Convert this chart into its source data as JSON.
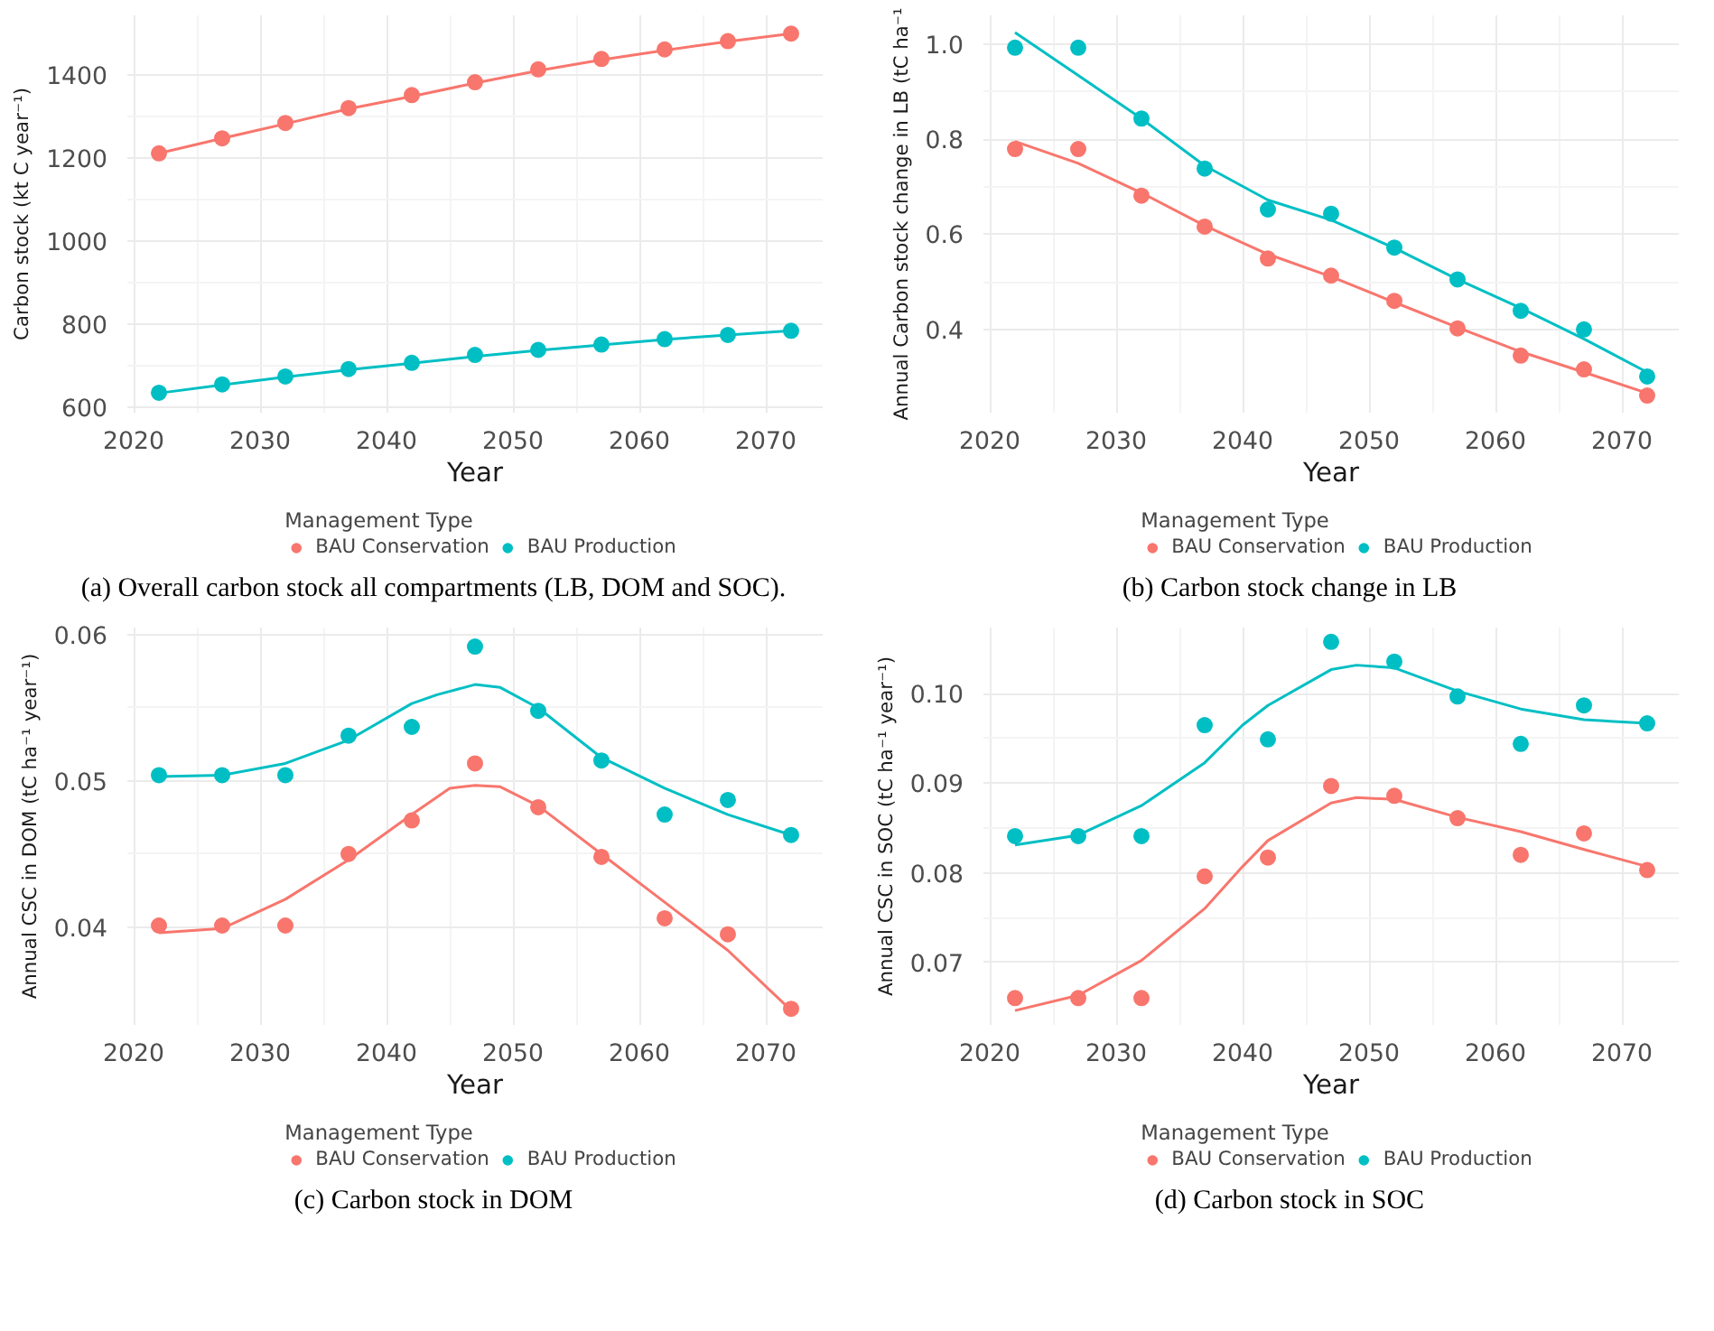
{
  "chart_data": [
    {
      "type": "scatter",
      "xlabel": "Year",
      "ylabel": "Carbon stock (kt C year⁻¹)",
      "legend_title": "Management Type",
      "legend": "bottom",
      "grid": true,
      "marker": "circle",
      "line_style": "solid",
      "xlim": [
        2019.5,
        2074.5
      ],
      "xticks": [
        2020,
        2030,
        2040,
        2050,
        2060,
        2070
      ],
      "ylim": [
        587,
        1543
      ],
      "yticks": [
        600,
        800,
        1000,
        1200,
        1400
      ],
      "annotations": [
        "(a) Overall carbon stock all compartments (LB, DOM and SOC)."
      ],
      "x": [
        2022,
        2027,
        2032,
        2037,
        2042,
        2047,
        2052,
        2057,
        2062,
        2067,
        2072
      ],
      "series": [
        {
          "name": "BAU Conservation",
          "color": "#f8766d",
          "values": [
            1211,
            1247,
            1284,
            1320,
            1351,
            1382,
            1413,
            1438,
            1461,
            1481,
            1499
          ]
        },
        {
          "name": "BAU Production",
          "color": "#00bfc4",
          "values": [
            635,
            655,
            674,
            692,
            707,
            726,
            738,
            751,
            764,
            774,
            784
          ]
        },
        {
          "type": "line",
          "marker": "none",
          "color": "#f8766d",
          "x": [
            2022,
            2027,
            2032,
            2037,
            2042,
            2047,
            2052,
            2057,
            2062,
            2067,
            2072
          ],
          "values": [
            1211,
            1247,
            1282,
            1318,
            1348,
            1380,
            1410,
            1436,
            1459,
            1480,
            1499
          ]
        },
        {
          "type": "line",
          "marker": "none",
          "color": "#00bfc4",
          "x": [
            2022,
            2027,
            2032,
            2037,
            2042,
            2047,
            2052,
            2057,
            2062,
            2067,
            2072
          ],
          "values": [
            634,
            654,
            673,
            690,
            706,
            722,
            737,
            750,
            763,
            774,
            784
          ]
        }
      ]
    },
    {
      "type": "scatter",
      "xlabel": "Year",
      "ylabel": "Annual Carbon stock change in LB (tC ha⁻¹",
      "legend_title": "Management Type",
      "legend": "bottom",
      "grid": true,
      "marker": "circle",
      "line_style": "solid",
      "xlim": [
        2019.5,
        2074.5
      ],
      "xticks": [
        2020,
        2030,
        2040,
        2050,
        2060,
        2070
      ],
      "ylim": [
        0.225,
        1.06
      ],
      "yticks": [
        0.4,
        0.6,
        0.8,
        {
          "value": 1.0,
          "label": "1.0"
        }
      ],
      "annotations": [
        "(b) Carbon stock change in LB"
      ],
      "x": [
        2022,
        2027,
        2032,
        2037,
        2042,
        2047,
        2052,
        2057,
        2062,
        2067,
        2072
      ],
      "series": [
        {
          "name": "BAU Conservation",
          "color": "#f8766d",
          "values": [
            0.779,
            0.779,
            0.681,
            0.616,
            0.549,
            0.513,
            0.46,
            0.402,
            0.345,
            0.316,
            0.261
          ]
        },
        {
          "name": "BAU Production",
          "color": "#00bfc4",
          "values": [
            0.992,
            0.992,
            0.843,
            0.738,
            0.652,
            0.643,
            0.572,
            0.505,
            0.439,
            0.4,
            0.301
          ]
        },
        {
          "type": "line",
          "marker": "none",
          "color": "#f8766d",
          "x": [
            2022,
            2027,
            2032,
            2037,
            2042,
            2047,
            2052,
            2057,
            2062,
            2067,
            2072
          ],
          "values": [
            0.795,
            0.749,
            0.687,
            0.618,
            0.558,
            0.511,
            0.457,
            0.404,
            0.353,
            0.31,
            0.266
          ]
        },
        {
          "type": "line",
          "marker": "none",
          "color": "#00bfc4",
          "x": [
            2022,
            2027,
            2032,
            2037,
            2042,
            2047,
            2052,
            2057,
            2062,
            2067,
            2072
          ],
          "values": [
            1.024,
            0.934,
            0.843,
            0.744,
            0.672,
            0.63,
            0.571,
            0.505,
            0.445,
            0.38,
            0.31
          ]
        }
      ]
    },
    {
      "type": "scatter",
      "xlabel": "Year",
      "ylabel": "Annual CSC in DOM (tC ha⁻¹ year⁻¹)",
      "legend_title": "Management Type",
      "legend": "bottom",
      "grid": true,
      "marker": "circle",
      "line_style": "solid",
      "xlim": [
        2019.5,
        2074.5
      ],
      "xticks": [
        2020,
        2030,
        2040,
        2050,
        2060,
        2070
      ],
      "ylim": [
        0.0333,
        0.0605
      ],
      "yticks": [
        0.04,
        0.05,
        0.06
      ],
      "annotations": [
        "(c) Carbon stock in DOM"
      ],
      "x": [
        2022,
        2027,
        2032,
        2037,
        2042,
        2047,
        2052,
        2057,
        2062,
        2067,
        2072
      ],
      "series": [
        {
          "name": "BAU Conservation",
          "color": "#f8766d",
          "values": [
            0.0401,
            0.0401,
            0.0401,
            0.045,
            0.0473,
            0.0512,
            0.0482,
            0.0448,
            0.0406,
            0.0395,
            0.0344
          ]
        },
        {
          "name": "BAU Production",
          "color": "#00bfc4",
          "values": [
            0.0504,
            0.0504,
            0.0504,
            0.0531,
            0.0537,
            0.0592,
            0.0548,
            0.0514,
            0.0477,
            0.0487,
            0.0463
          ]
        },
        {
          "type": "line",
          "marker": "none",
          "color": "#f8766d",
          "x": [
            2022,
            2027,
            2032,
            2037,
            2042,
            2045,
            2047,
            2049,
            2052,
            2057,
            2062,
            2067,
            2072
          ],
          "values": [
            0.0396,
            0.0399,
            0.0419,
            0.0446,
            0.0477,
            0.0495,
            0.0497,
            0.0496,
            0.0483,
            0.045,
            0.0417,
            0.0384,
            0.0343
          ]
        },
        {
          "type": "line",
          "marker": "none",
          "color": "#00bfc4",
          "x": [
            2022,
            2027,
            2032,
            2037,
            2042,
            2044,
            2047,
            2049,
            2052,
            2057,
            2062,
            2067,
            2072
          ],
          "values": [
            0.0503,
            0.0504,
            0.0512,
            0.0528,
            0.0553,
            0.0559,
            0.0566,
            0.0564,
            0.055,
            0.0516,
            0.0495,
            0.0477,
            0.0463
          ]
        }
      ]
    },
    {
      "type": "scatter",
      "xlabel": "Year",
      "ylabel": "Annual CSC in SOC (tC ha⁻¹ year⁻¹)",
      "legend_title": "Management Type",
      "legend": "bottom",
      "grid": true,
      "marker": "circle",
      "line_style": "solid",
      "xlim": [
        2019.5,
        2074.5
      ],
      "xticks": [
        2020,
        2030,
        2040,
        2050,
        2060,
        2070
      ],
      "ylim": [
        0.063,
        0.1074
      ],
      "yticks": [
        {
          "value": 0.07,
          "label": "0.07"
        },
        {
          "value": 0.08,
          "label": "0.08"
        },
        {
          "value": 0.09,
          "label": "0.09"
        },
        {
          "value": 0.1,
          "label": "0.10"
        }
      ],
      "annotations": [
        "(d) Carbon stock in SOC"
      ],
      "x": [
        2022,
        2027,
        2032,
        2037,
        2042,
        2047,
        2052,
        2057,
        2062,
        2067,
        2072
      ],
      "series": [
        {
          "name": "BAU Conservation",
          "color": "#f8766d",
          "values": [
            0.066,
            0.066,
            0.066,
            0.0796,
            0.0817,
            0.0897,
            0.0886,
            0.0861,
            0.082,
            0.0844,
            0.0803
          ]
        },
        {
          "name": "BAU Production",
          "color": "#00bfc4",
          "values": [
            0.0841,
            0.0841,
            0.0841,
            0.0965,
            0.0949,
            0.1058,
            0.1036,
            0.0997,
            0.0944,
            0.0987,
            0.0967
          ]
        },
        {
          "type": "line",
          "marker": "none",
          "color": "#f8766d",
          "x": [
            2022,
            2027,
            2032,
            2037,
            2040,
            2042,
            2047,
            2049,
            2052,
            2057,
            2062,
            2067,
            2072
          ],
          "values": [
            0.0646,
            0.0663,
            0.0702,
            0.076,
            0.0807,
            0.0836,
            0.0878,
            0.0884,
            0.0882,
            0.0862,
            0.0846,
            0.0826,
            0.0807
          ]
        },
        {
          "type": "line",
          "marker": "none",
          "color": "#00bfc4",
          "x": [
            2022,
            2027,
            2032,
            2037,
            2040,
            2042,
            2047,
            2049,
            2052,
            2057,
            2062,
            2067,
            2072
          ],
          "values": [
            0.0831,
            0.0842,
            0.0875,
            0.0923,
            0.0965,
            0.0987,
            0.1027,
            0.1032,
            0.1029,
            0.1003,
            0.0983,
            0.0971,
            0.0967
          ]
        }
      ]
    }
  ]
}
